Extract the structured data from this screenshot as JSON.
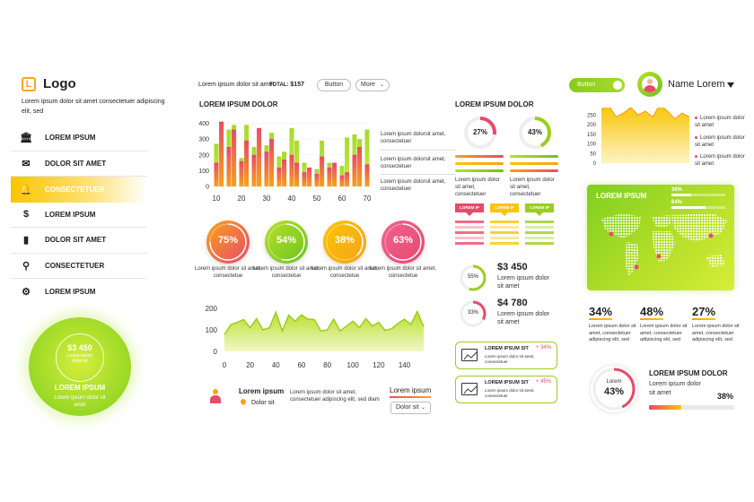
{
  "brand": {
    "logo_letter": "L",
    "logo_text": "Logo",
    "tagline": "Lorem ipsum dolor sit amet consectetuer adipiscing elit, sed"
  },
  "nav": [
    {
      "label": "LOREM IPSUM",
      "icon": "bank-icon"
    },
    {
      "label": "DOLOR SIT AMET",
      "icon": "envelope-icon"
    },
    {
      "label": "CONSECTETUER",
      "icon": "bell-icon",
      "active": true
    },
    {
      "label": "LOREM IPSUM",
      "icon": "dollar-icon"
    },
    {
      "label": "DOLOR SIT AMET",
      "icon": "bar-chart-icon"
    },
    {
      "label": "CONSECTETUER",
      "icon": "search-icon"
    },
    {
      "label": "LOREM IPSUM",
      "icon": "gear-icon"
    }
  ],
  "badge": {
    "amount": "$3 450",
    "sub": "Lorem ipsum dolor sit",
    "title": "LOREM IPSUM",
    "text": "Lorem ipsum dolor sit amet"
  },
  "topbar": {
    "text": "Lorem ipsum dolor sit amet",
    "total_label": "TOTAL:",
    "total_value": "$157",
    "button_label": "Button",
    "more_label": "More"
  },
  "toggle": {
    "label": "Button"
  },
  "user": {
    "name": "Name Lorem"
  },
  "bar_section": {
    "title": "LOREM IPSUM DOLOR",
    "notes": [
      "Lorem ipsum dolorsit amet, consectetuer",
      "Lorem ipsum dolorsit amet, consectetuer",
      "Lorem ipsum dolorsit amet, consectetuer"
    ]
  },
  "rings": [
    {
      "value": "75%",
      "pct": 75,
      "c1": "#f7a21b",
      "c2": "#e84a6a",
      "label": "Lorem ipsum dolor sit amet, consectetue"
    },
    {
      "value": "54%",
      "pct": 54,
      "c1": "#b8e02a",
      "c2": "#6cc21e",
      "label": "Lorem ipsum dolor sit amet, consectetue"
    },
    {
      "value": "38%",
      "pct": 38,
      "c1": "#f9c500",
      "c2": "#f7a21b",
      "label": "Lorem ipsum dolor sit amet, consectetue"
    },
    {
      "value": "63%",
      "pct": 63,
      "c1": "#f06292",
      "c2": "#e84a6a",
      "label": "Lorem ipsum dolor sit amet, consectetue"
    }
  ],
  "contact": {
    "title": "Lorem ipsum",
    "location": "Dolor sit",
    "text": "Lorem ipsum dolor sit amet, consectetuer adipiscing elit, sed diam",
    "link": "Lorem ipsum",
    "select": "Dolor sit"
  },
  "mid": {
    "title": "LOREM IPSUM DOLOR",
    "donuts": [
      {
        "value": "27%",
        "pct": 27,
        "color": "#e84a6a"
      },
      {
        "value": "43%",
        "pct": 43,
        "color": "#9ccd1f"
      }
    ],
    "donut_notes": [
      "Lorem ipsum dolor sit amet, consectetuer",
      "Lorem ipsum dolor sit amet, consectetuer"
    ],
    "tags": [
      "LOREM IP",
      "LOREM IP",
      "LOREM IP"
    ],
    "money": [
      {
        "pct_label": "55%",
        "pct": 55,
        "amount": "$3 450",
        "text": "Lorem ipsum dolor sit amet",
        "color": "#9ccd1f"
      },
      {
        "pct_label": "33%",
        "pct": 33,
        "amount": "$4 780",
        "text": "Lorem ipsum dolor sit amet",
        "color": "#e84a6a"
      }
    ],
    "kpis": [
      {
        "title": "LOREM IPSUM SIT",
        "delta": "+ 34%",
        "text": "Lorem ipsum dolor sit amet, consectetuer"
      },
      {
        "title": "LOREM IPSUM SIT",
        "delta": "+ 45%",
        "text": "Lorem ipsum dolor sit amet, consectetuer"
      }
    ]
  },
  "right": {
    "legend": [
      "Lorem ipsum dolor sit amet",
      "Lorem ipsum dolor sit amet",
      "Lorem ipsum dolor sit amet"
    ],
    "map": {
      "title": "LOREM IPSUM",
      "p1": "36%",
      "p2": "64%"
    },
    "stats": [
      {
        "value": "34%",
        "text": "Lorem ipsum dolor sit amet, consectetuer adipiscing elit, sed"
      },
      {
        "value": "48%",
        "text": "Lorem ipsum dolor sit amet, consectetuer adipiscing elit, sed"
      },
      {
        "value": "27%",
        "text": "Lorem ipsum dolor sit amet, consectetuer adipiscing elit, sed"
      }
    ],
    "bottom": {
      "ring_title": "Lorem",
      "ring_value": "43%",
      "pct": 43,
      "title": "LOREM IPSUM DOLOR",
      "text": "Lorem ipsum dolor sit amet",
      "progress_label": "38%",
      "progress": 0.38
    }
  },
  "chart_data": [
    {
      "type": "bar",
      "x": [
        10,
        12,
        15,
        17,
        20,
        22,
        25,
        27,
        30,
        32,
        35,
        37,
        40,
        42,
        45,
        47,
        50,
        52,
        55,
        57,
        60,
        62,
        65,
        67,
        70
      ],
      "series": [
        {
          "values": [
            150,
            410,
            250,
            360,
            160,
            290,
            200,
            370,
            220,
            300,
            120,
            170,
            200,
            150,
            90,
            120,
            80,
            190,
            120,
            150,
            70,
            90,
            200,
            250,
            140
          ]
        },
        {
          "values": [
            270,
            410,
            360,
            390,
            180,
            390,
            250,
            310,
            260,
            340,
            190,
            220,
            370,
            290,
            150,
            110,
            110,
            290,
            150,
            110,
            130,
            310,
            330,
            300,
            360
          ]
        }
      ],
      "x_ticks": [
        10,
        20,
        30,
        40,
        50,
        60,
        70
      ],
      "y_ticks": [
        0,
        100,
        200,
        300,
        400
      ],
      "ylim": [
        0,
        420
      ]
    },
    {
      "type": "area",
      "x": [
        0,
        5,
        10,
        15,
        20,
        25,
        30,
        35,
        40,
        45,
        50,
        55,
        60,
        65,
        70,
        75,
        80,
        85,
        90,
        95,
        100,
        105,
        110,
        115,
        120,
        125,
        130,
        135,
        140,
        145,
        150,
        155
      ],
      "values": [
        78,
        125,
        135,
        148,
        110,
        152,
        100,
        110,
        182,
        95,
        168,
        140,
        170,
        150,
        148,
        95,
        100,
        150,
        95,
        118,
        140,
        110,
        152,
        118,
        135,
        98,
        105,
        130,
        150,
        125,
        185,
        115
      ],
      "x_ticks": [
        0,
        20,
        40,
        60,
        80,
        100,
        120,
        140
      ],
      "y_ticks": [
        0,
        100,
        200
      ],
      "ylim": [
        0,
        200
      ]
    },
    {
      "type": "area",
      "x": [
        0,
        1,
        2,
        3,
        4,
        5,
        6,
        7,
        8,
        9,
        10,
        11,
        12
      ],
      "values": [
        280,
        300,
        240,
        260,
        290,
        250,
        270,
        240,
        305,
        270,
        230,
        260,
        240
      ],
      "y_ticks": [
        0,
        50,
        100,
        150,
        200,
        250
      ],
      "ylim": [
        0,
        300
      ]
    }
  ]
}
